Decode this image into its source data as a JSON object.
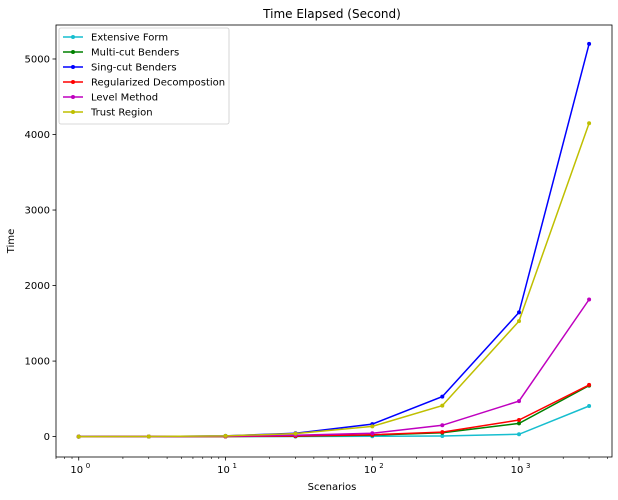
{
  "chart_data": {
    "type": "line",
    "title": "Time Elapsed (Second)",
    "xlabel": "Scenarios",
    "ylabel": "Time",
    "xscale": "log",
    "xlim": [
      0.7,
      4300
    ],
    "ylim": [
      -270,
      5450
    ],
    "x_ticks": [
      {
        "value": 1,
        "base": "10",
        "exp": "0"
      },
      {
        "value": 10,
        "base": "10",
        "exp": "1"
      },
      {
        "value": 100,
        "base": "10",
        "exp": "2"
      },
      {
        "value": 1000,
        "base": "10",
        "exp": "3"
      }
    ],
    "y_ticks": [
      0,
      1000,
      2000,
      3000,
      4000,
      5000
    ],
    "x": [
      1,
      3,
      10,
      30,
      100,
      300,
      1000,
      3000
    ],
    "grid": false,
    "legend_position": "top-left",
    "series": [
      {
        "name": "Extensive Form",
        "color": "#17becf",
        "values": [
          0,
          0,
          1,
          2,
          4,
          8,
          30,
          405
        ]
      },
      {
        "name": "Multi-cut Benders",
        "color": "#008000",
        "values": [
          0,
          1,
          2,
          6,
          20,
          50,
          175,
          675
        ]
      },
      {
        "name": "Sing-cut Benders",
        "color": "#0000ff",
        "values": [
          0,
          2,
          10,
          45,
          165,
          530,
          1645,
          5200
        ]
      },
      {
        "name": "Regularized Decompostion",
        "color": "#ff0000",
        "values": [
          0,
          1,
          2,
          8,
          25,
          60,
          220,
          685
        ]
      },
      {
        "name": "Level Method",
        "color": "#bf00bf",
        "values": [
          0,
          1,
          4,
          18,
          45,
          150,
          470,
          1815
        ]
      },
      {
        "name": "Trust Region",
        "color": "#bfbf00",
        "values": [
          0,
          2,
          10,
          40,
          135,
          410,
          1530,
          4150
        ]
      }
    ]
  }
}
